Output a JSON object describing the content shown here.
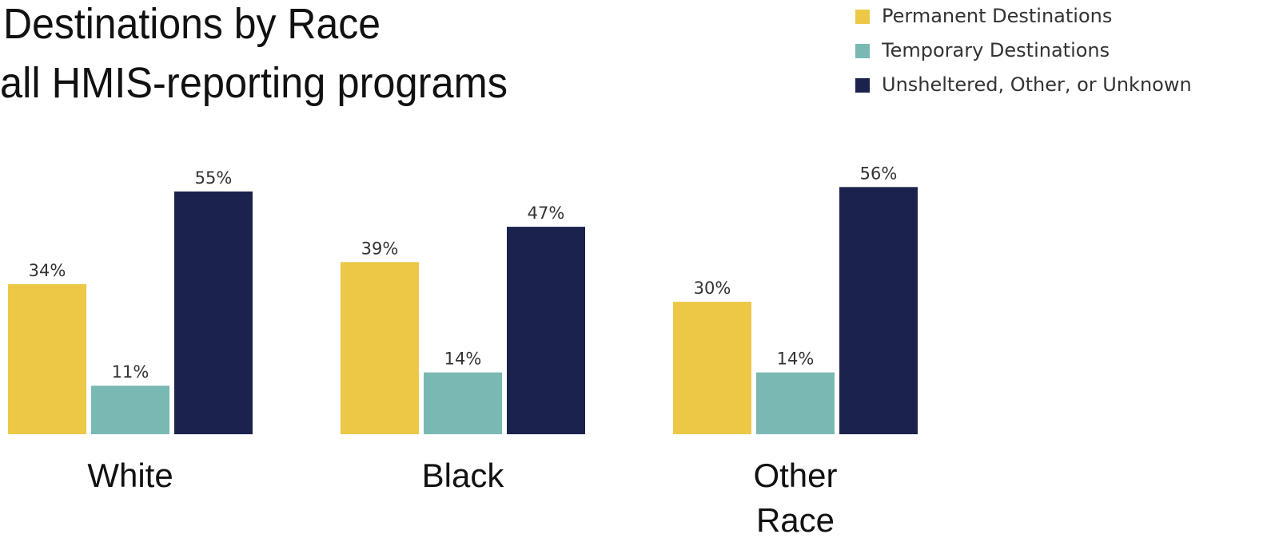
{
  "chart_data": {
    "type": "bar",
    "title": [
      "Destinations by Race",
      "all HMIS-reporting programs"
    ],
    "categories": [
      "White",
      "Black",
      "Other Race"
    ],
    "series": [
      {
        "name": "Permanent Destinations",
        "color": "#ecc846",
        "values": [
          34,
          39,
          30
        ],
        "value_labels": [
          "34%",
          "39%",
          "30%"
        ]
      },
      {
        "name": "Temporary Destinations",
        "color": "#7ab8b3",
        "values": [
          11,
          14,
          14
        ],
        "value_labels": [
          "11%",
          "14%",
          "14%"
        ]
      },
      {
        "name": "Unsheltered, Other, or Unknown",
        "color": "#1b224d",
        "values": [
          55,
          47,
          56
        ],
        "value_labels": [
          "55%",
          "47%",
          "56%"
        ]
      }
    ],
    "legend": "top-right"
  }
}
